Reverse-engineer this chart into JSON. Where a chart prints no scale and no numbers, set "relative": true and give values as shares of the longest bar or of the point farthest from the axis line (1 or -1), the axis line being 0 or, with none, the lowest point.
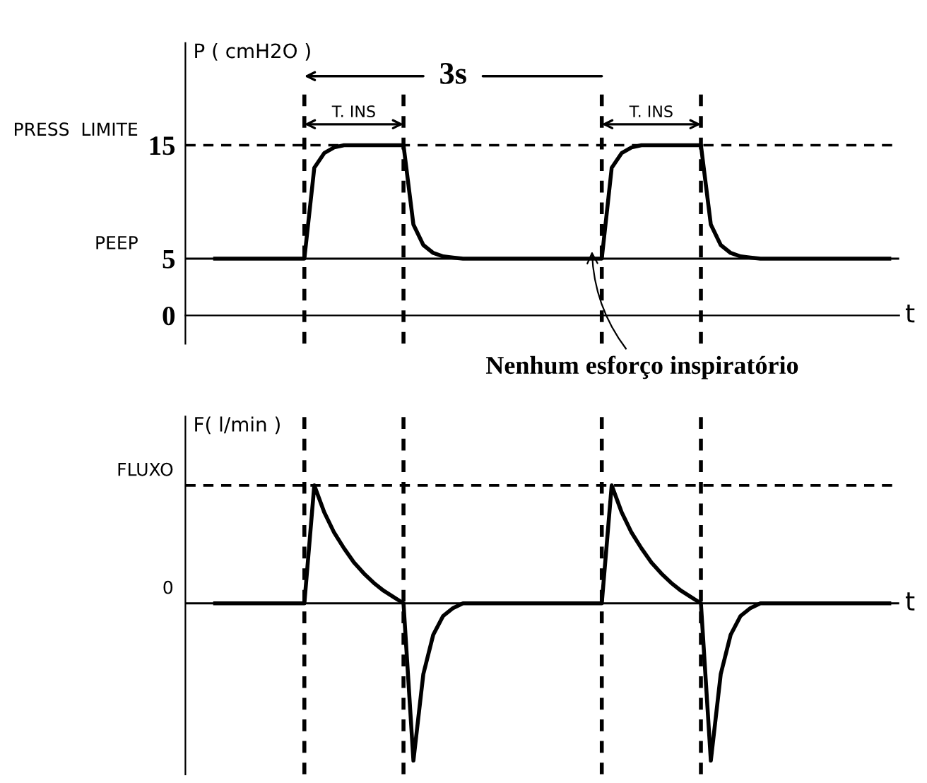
{
  "chart_data": [
    {
      "type": "line",
      "ylabel": "P ( cmH2O )",
      "xlabel": "t",
      "tick_labels": "y",
      "grid": "x",
      "marker": "none",
      "line_style": "solid",
      "categories": [
        null,
        null,
        null,
        null,
        null,
        null,
        null,
        null,
        null,
        null,
        null,
        null,
        null,
        null,
        null,
        null,
        null,
        null,
        null,
        null,
        null,
        null,
        null,
        null,
        null,
        null,
        null,
        null,
        null,
        null,
        null,
        null,
        null,
        null,
        null,
        null,
        null,
        null,
        null,
        null,
        null,
        null,
        null,
        null,
        null,
        null,
        null,
        null,
        null,
        null,
        null,
        null,
        null,
        null,
        null,
        null,
        null,
        null,
        null,
        null,
        null,
        null,
        null,
        null,
        null,
        null,
        null,
        null,
        null
      ],
      "ylim": [
        -2.5,
        24
      ],
      "yticks": [
        0,
        5,
        15
      ],
      "series": [
        {
          "color": "#000000",
          "values": [
            5,
            5,
            5,
            5,
            5,
            5,
            5,
            5,
            5,
            5,
            13,
            14.3,
            14.8,
            15,
            15,
            15,
            15,
            15,
            15,
            15,
            8,
            6.2,
            5.5,
            5.2,
            5.1,
            5,
            5,
            5,
            5,
            5,
            5,
            5,
            5,
            5,
            5,
            5,
            5,
            5,
            5,
            5,
            13,
            14.3,
            14.8,
            15,
            15,
            15,
            15,
            15,
            15,
            15,
            8,
            6.2,
            5.5,
            5.2,
            5.1,
            5,
            5,
            5,
            5,
            5,
            5,
            5,
            5,
            5,
            5,
            5,
            5,
            5,
            5
          ]
        }
      ],
      "ref_lines": [
        {
          "axis": "y",
          "value": 15,
          "label": "PRESS  LIMITE",
          "line_style": "dashed"
        },
        {
          "axis": "y",
          "value": 5,
          "label": "PEEP",
          "line_style": "solid"
        }
      ],
      "annotations": [
        "3s",
        "T. INS",
        "T. INS",
        "Nenhum esforço inspiratório"
      ]
    },
    {
      "type": "line",
      "ylabel": "F( l/min )",
      "xlabel": "t",
      "relative": true,
      "tick_labels": false,
      "grid": "x",
      "marker": "none",
      "line_style": "solid",
      "categories": [
        null,
        null,
        null,
        null,
        null,
        null,
        null,
        null,
        null,
        null,
        null,
        null,
        null,
        null,
        null,
        null,
        null,
        null,
        null,
        null,
        null,
        null,
        null,
        null,
        null,
        null,
        null,
        null,
        null,
        null,
        null,
        null,
        null,
        null,
        null,
        null,
        null,
        null,
        null,
        null,
        null,
        null,
        null,
        null,
        null,
        null,
        null,
        null,
        null,
        null,
        null,
        null,
        null,
        null,
        null,
        null,
        null,
        null,
        null,
        null,
        null,
        null,
        null,
        null,
        null,
        null,
        null,
        null,
        null
      ],
      "series": [
        {
          "color": "#000000",
          "values": [
            0,
            0,
            0,
            0,
            0,
            0,
            0,
            0,
            0,
            0,
            0.75,
            0.58,
            0.45,
            0.35,
            0.26,
            0.19,
            0.13,
            0.08,
            0.04,
            0,
            -1,
            -0.45,
            -0.2,
            -0.08,
            -0.03,
            0,
            0,
            0,
            0,
            0,
            0,
            0,
            0,
            0,
            0,
            0,
            0,
            0,
            0,
            0,
            0.75,
            0.58,
            0.45,
            0.35,
            0.26,
            0.19,
            0.13,
            0.08,
            0.04,
            0,
            -1,
            -0.45,
            -0.2,
            -0.08,
            -0.03,
            0,
            0,
            0,
            0,
            0,
            0,
            0,
            0,
            0,
            0,
            0,
            0,
            0,
            0
          ]
        }
      ],
      "ref_lines": [
        {
          "axis": "y",
          "value": 0.75,
          "label": "FLUXO",
          "line_style": "dashed"
        },
        {
          "axis": "y",
          "value": 0,
          "label": "0",
          "line_style": "solid"
        }
      ]
    }
  ]
}
